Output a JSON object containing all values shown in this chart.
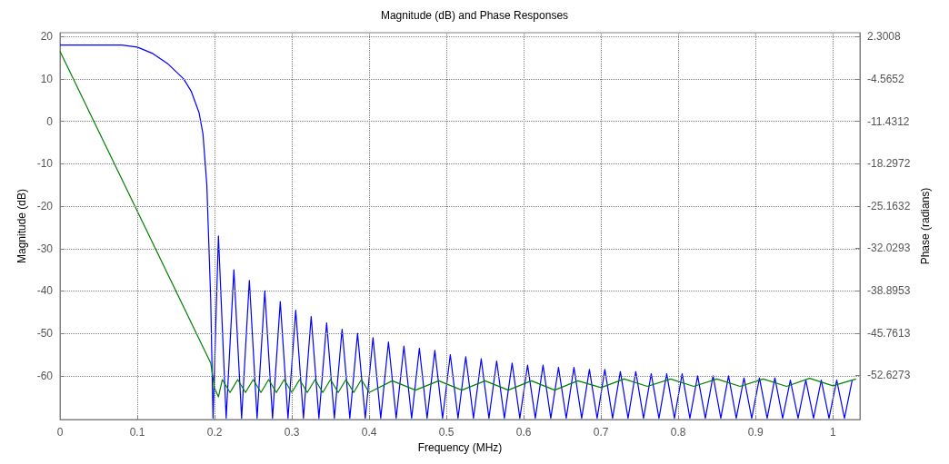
{
  "chart_data": {
    "type": "line",
    "title": "Magnitude (dB) and Phase Responses",
    "xlabel": "Frequency (MHz)",
    "ylabel": "Magnitude (dB)",
    "y2label": "Phase (radians)",
    "xlim": [
      0,
      1.035
    ],
    "xticks": [
      0,
      0.1,
      0.2,
      0.3,
      0.4,
      0.5,
      0.6,
      0.7,
      0.8,
      0.9,
      1
    ],
    "ylim": [
      -70.3,
      20.9
    ],
    "yticks": [
      -60,
      -50,
      -40,
      -30,
      -20,
      -10,
      0,
      10,
      20
    ],
    "y2lim": [
      -59.77,
      2.92
    ],
    "y2ticks": [
      -52.6273,
      -45.7613,
      -38.8953,
      -32.0293,
      -25.1632,
      -18.2972,
      -11.4312,
      -4.5652,
      2.3008
    ],
    "grid": true,
    "marker": "none",
    "line_style": "solid",
    "series": [
      {
        "color": "#0000ff",
        "x": [
          0,
          0.05,
          0.08,
          0.1,
          0.12,
          0.14,
          0.16,
          0.17,
          0.18,
          0.185,
          0.19,
          0.195,
          0.198,
          0.205,
          0.215,
          0.225,
          0.235,
          0.245,
          0.255,
          0.265,
          0.275,
          0.285,
          0.295,
          0.305,
          0.315,
          0.325,
          0.335,
          0.345,
          0.355,
          0.365,
          0.375,
          0.385,
          0.395,
          0.405,
          0.415,
          0.425,
          0.435,
          0.445,
          0.455,
          0.465,
          0.475,
          0.485,
          0.495,
          0.505,
          0.515,
          0.525,
          0.535,
          0.545,
          0.555,
          0.565,
          0.575,
          0.585,
          0.595,
          0.605,
          0.615,
          0.625,
          0.635,
          0.645,
          0.655,
          0.665,
          0.675,
          0.685,
          0.695,
          0.705,
          0.715,
          0.725,
          0.735,
          0.745,
          0.755,
          0.765,
          0.775,
          0.785,
          0.795,
          0.805,
          0.815,
          0.825,
          0.835,
          0.845,
          0.855,
          0.865,
          0.875,
          0.885,
          0.895,
          0.905,
          0.915,
          0.925,
          0.935,
          0.945,
          0.955,
          0.965,
          0.975,
          0.985,
          0.995,
          1.005,
          1.015,
          1.025
        ],
        "values": [
          18,
          18,
          18,
          17.5,
          16,
          13.5,
          10,
          7,
          2,
          -3,
          -15,
          -42,
          -70,
          -27,
          -70,
          -35,
          -70,
          -37.5,
          -70,
          -40,
          -70,
          -42.5,
          -70,
          -44.5,
          -70,
          -46,
          -70,
          -47.5,
          -70,
          -49,
          -70,
          -50,
          -70,
          -51,
          -70,
          -52,
          -70,
          -53,
          -70,
          -53.5,
          -70,
          -54,
          -70,
          -55,
          -70,
          -55.5,
          -70,
          -56,
          -70,
          -56.5,
          -70,
          -57,
          -70,
          -57.5,
          -70,
          -57.5,
          -70,
          -58,
          -70,
          -58,
          -70,
          -58.5,
          -70,
          -58.5,
          -70,
          -59,
          -70,
          -59,
          -70,
          -59.5,
          -70,
          -59.5,
          -70,
          -59.5,
          -70,
          -60,
          -70,
          -60,
          -70,
          -60,
          -70,
          -60.5,
          -70,
          -60.5,
          -70,
          -60.5,
          -70,
          -61,
          -70,
          -61,
          -70,
          -61,
          -70,
          -61,
          -70,
          -61
        ]
      },
      {
        "color": "#008000",
        "axis": "y2",
        "x": [
          0,
          0.195,
          0.2,
          0.205,
          0.21,
          0.22,
          0.23,
          0.24,
          0.25,
          0.26,
          0.27,
          0.28,
          0.29,
          0.3,
          0.31,
          0.32,
          0.33,
          0.34,
          0.35,
          0.36,
          0.37,
          0.38,
          0.39,
          0.4,
          0.43,
          0.46,
          0.49,
          0.52,
          0.55,
          0.58,
          0.61,
          0.64,
          0.67,
          0.7,
          0.73,
          0.76,
          0.79,
          0.82,
          0.85,
          0.88,
          0.91,
          0.94,
          0.97,
          1.0,
          1.03
        ],
        "values": [
          -0.1,
          -50.6,
          -54.7,
          -56.1,
          -53.3,
          -55.4,
          -53.3,
          -55.4,
          -53.3,
          -55.4,
          -53.3,
          -55.4,
          -53.3,
          -55.4,
          -53.3,
          -55.4,
          -53.3,
          -55.4,
          -53.3,
          -55.4,
          -53.3,
          -55.4,
          -53.3,
          -55.4,
          -53.5,
          -55,
          -53.5,
          -55,
          -53.5,
          -55,
          -53.5,
          -55,
          -53.5,
          -54.6,
          -53.2,
          -54.4,
          -53.2,
          -54.4,
          -53.2,
          -54.4,
          -53.2,
          -54.4,
          -53.1,
          -54.3,
          -53.2
        ]
      }
    ]
  }
}
